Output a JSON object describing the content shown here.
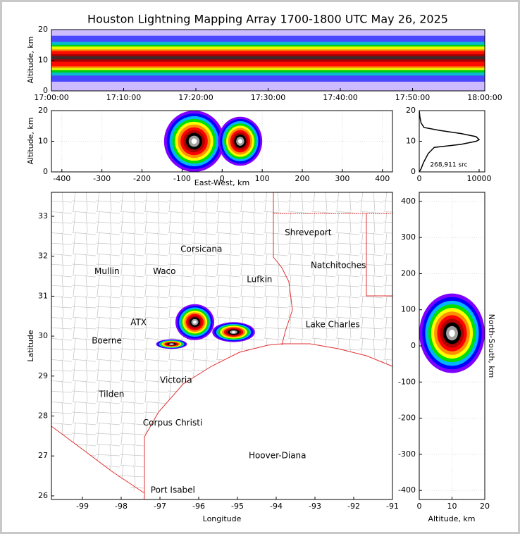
{
  "chart_data": [
    {
      "type": "heatmap",
      "title": "Houston Lightning Mapping Array 1700-1800 UTC May 26, 2025",
      "ylabel": "Altitude, km",
      "xlim": [
        0,
        60
      ],
      "ylim": [
        0,
        20
      ],
      "xticks": [
        {
          "value": 0,
          "label": "17:00:00"
        },
        {
          "value": 10,
          "label": "17:10:00"
        },
        {
          "value": 20,
          "label": "17:20:00"
        },
        {
          "value": 30,
          "label": "17:30:00"
        },
        {
          "value": 40,
          "label": "17:40:00"
        },
        {
          "value": 50,
          "label": "17:50:00"
        },
        {
          "value": 60,
          "label": "18:00:00"
        }
      ],
      "yticks": [
        0,
        10,
        20
      ],
      "grid": false,
      "bands": [
        {
          "low": 0,
          "high": 20,
          "color": "#c8b4ff"
        },
        {
          "low": 3,
          "high": 18,
          "color": "#3c3cff"
        },
        {
          "low": 5,
          "high": 16,
          "color": "#00c8c8"
        },
        {
          "low": 6,
          "high": 15,
          "color": "#00d000"
        },
        {
          "low": 6.8,
          "high": 14.5,
          "color": "#ffff00"
        },
        {
          "low": 7.5,
          "high": 13.5,
          "color": "#ff7000"
        },
        {
          "low": 8,
          "high": 13,
          "color": "#ff0000"
        },
        {
          "low": 9.5,
          "high": 12,
          "color": "#a00000"
        },
        {
          "low": 10.3,
          "high": 11.3,
          "color": "#303030"
        }
      ]
    },
    {
      "type": "density",
      "xlabel": "East-West, km",
      "ylabel": "Altitude, km",
      "xlim": [
        -426,
        425
      ],
      "ylim": [
        0,
        20
      ],
      "xticks": [
        -400,
        -300,
        -200,
        -100,
        0,
        100,
        200,
        300,
        400
      ],
      "yticks": [
        0,
        10,
        20
      ],
      "grid": true,
      "palette": [
        "#8000ff",
        "#0000ff",
        "#00b4ff",
        "#00e000",
        "#ffff00",
        "#ff9000",
        "#ff0000",
        "#b00000",
        "#000000",
        "#a0a0a0",
        "#ffffff"
      ],
      "clusters": [
        {
          "x": -70,
          "y": 10,
          "rx": 75,
          "ry": 10
        },
        {
          "x": 45,
          "y": 10,
          "rx": 55,
          "ry": 8
        }
      ]
    },
    {
      "type": "line",
      "annotation": "268,911 src",
      "xlim": [
        0,
        10940
      ],
      "ylim": [
        0,
        20
      ],
      "xticks": [
        0,
        10000
      ],
      "yticks": [
        0,
        10,
        20
      ],
      "grid": false,
      "color": "#000000",
      "x": [
        0,
        300,
        700,
        1500,
        2500,
        7000,
        9500,
        10000,
        9500,
        7000,
        3500,
        800,
        300,
        100,
        0
      ],
      "values": [
        0,
        1,
        3,
        6,
        8,
        9,
        10,
        10.5,
        11.5,
        12.5,
        13.5,
        14.5,
        16,
        18,
        20
      ]
    },
    {
      "type": "map",
      "xlabel": "Longitude",
      "ylabel": "Latitude",
      "xlim": [
        -99.8,
        -91
      ],
      "ylim": [
        25.91,
        33.6
      ],
      "xticks": [
        -99,
        -98,
        -97,
        -96,
        -95,
        -94,
        -93,
        -92,
        -91
      ],
      "yticks": [
        26,
        27,
        28,
        29,
        30,
        31,
        32,
        33
      ],
      "grid": false,
      "palette": [
        "#8000ff",
        "#0000ff",
        "#00b4ff",
        "#00e000",
        "#ffff00",
        "#ff9000",
        "#ff0000",
        "#b00000",
        "#000000",
        "#a0a0a0",
        "#ffffff"
      ],
      "clusters": [
        {
          "x": -96.1,
          "y": 30.35,
          "rx": 0.5,
          "ry": 0.45
        },
        {
          "x": -95.1,
          "y": 30.1,
          "rx": 0.55,
          "ry": 0.25
        },
        {
          "x": -96.7,
          "y": 29.8,
          "rx": 0.4,
          "ry": 0.12
        }
      ],
      "cities": [
        {
          "name": "Shreveport",
          "lon": -93.78,
          "lat": 32.59,
          "color": "#000000"
        },
        {
          "name": "Corsicana",
          "lon": -96.47,
          "lat": 32.17,
          "color": "#000000"
        },
        {
          "name": "Mullin",
          "lon": -98.69,
          "lat": 31.62,
          "color": "#f08a4b"
        },
        {
          "name": "Waco",
          "lon": -97.18,
          "lat": 31.62,
          "color": "#000000"
        },
        {
          "name": "Lufkin",
          "lon": -94.76,
          "lat": 31.41,
          "color": "#000000"
        },
        {
          "name": "Natchitoches",
          "lon": -93.11,
          "lat": 31.77,
          "color": "#000000"
        },
        {
          "name": "ATX",
          "lon": -97.76,
          "lat": 30.34,
          "color": "#f08a4b"
        },
        {
          "name": "Boerne",
          "lon": -98.76,
          "lat": 29.88,
          "color": "#000000"
        },
        {
          "name": "Lake Charles",
          "lon": -93.24,
          "lat": 30.28,
          "color": "#000000"
        },
        {
          "name": "Victoria",
          "lon": -97.0,
          "lat": 28.89,
          "color": "#000000"
        },
        {
          "name": "Tilden",
          "lon": -98.58,
          "lat": 28.54,
          "color": "#000000"
        },
        {
          "name": "Corpus Christi",
          "lon": -97.44,
          "lat": 27.82,
          "color": "#000000"
        },
        {
          "name": "Hoover-Diana",
          "lon": -94.71,
          "lat": 27.0,
          "color": "#0000ff"
        },
        {
          "name": "Port Isabel",
          "lon": -97.24,
          "lat": 26.14,
          "color": "#000000"
        }
      ]
    },
    {
      "type": "density",
      "xlabel": "Altitude, km",
      "ylabel": "North-South, km",
      "xlim": [
        0,
        20
      ],
      "ylim": [
        -425,
        425
      ],
      "xticks": [
        0,
        10,
        20
      ],
      "yticks": [
        -400,
        -300,
        -200,
        -100,
        0,
        100,
        200,
        300,
        400
      ],
      "grid": true,
      "palette": [
        "#8000ff",
        "#0000ff",
        "#00b4ff",
        "#00e000",
        "#ffff00",
        "#ff9000",
        "#ff0000",
        "#b00000",
        "#000000",
        "#a0a0a0",
        "#ffffff"
      ],
      "clusters": [
        {
          "x": 10,
          "y": 35,
          "rx": 10,
          "ry": 110
        }
      ]
    }
  ]
}
